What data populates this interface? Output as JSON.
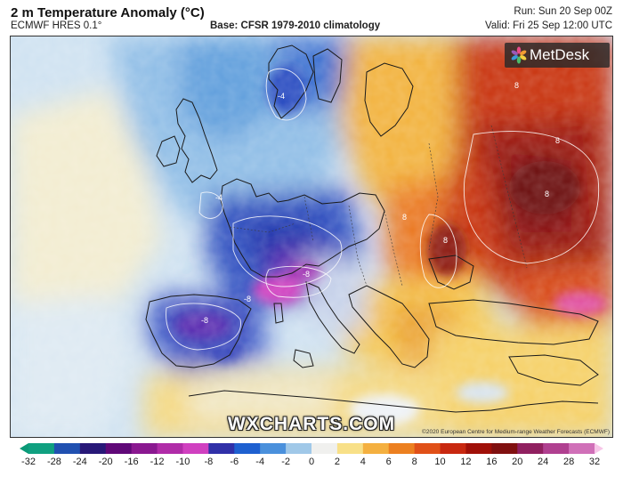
{
  "header": {
    "title": "2 m Temperature Anomaly (°C)",
    "model": "ECMWF HRES 0.1°",
    "base": "Base: CFSR 1979-2010 climatology",
    "run": "Run: Sun 20 Sep 00Z",
    "valid": "Valid: Fri 25 Sep 12:00 UTC"
  },
  "branding": {
    "logo_icon": "metdesk-logo-icon",
    "name": "MetDesk",
    "watermark": "WXCHARTS.COM",
    "copyright": "©2020 European Centre for Medium-range Weather Forecasts (ECMWF)"
  },
  "map": {
    "region": "Europe",
    "variable": "2 m temperature anomaly",
    "contour_labels": [
      "-8",
      "-8",
      "-8",
      "-4",
      "-4",
      "8",
      "8",
      "8",
      "8",
      "8"
    ],
    "colors": {
      "cold_extreme": "#e040c0",
      "very_cold": "#2020b0",
      "cold": "#3a7fd0",
      "cool": "#a8cde8",
      "neutral": "#f0f0ea",
      "warm": "#f4c040",
      "hot": "#e86020",
      "very_hot": "#b01808",
      "land_outline": "#1a1a1a"
    }
  },
  "legend": {
    "ticks": [
      "-32",
      "-28",
      "-24",
      "-20",
      "-16",
      "-12",
      "-10",
      "-8",
      "-6",
      "-4",
      "-2",
      "0",
      "2",
      "4",
      "6",
      "8",
      "10",
      "12",
      "16",
      "20",
      "24",
      "28",
      "32"
    ],
    "colors": [
      "#10a080",
      "#2050b0",
      "#281878",
      "#600878",
      "#8a1890",
      "#b02ca8",
      "#d040c0",
      "#3030a8",
      "#1e60d0",
      "#4a90dc",
      "#a0c8e8",
      "#f0f0ee",
      "#f8e088",
      "#f4b040",
      "#ec8020",
      "#e05018",
      "#c82810",
      "#a01008",
      "#801010",
      "#902060",
      "#b04090",
      "#d070b8",
      "#f0a0d8"
    ]
  }
}
